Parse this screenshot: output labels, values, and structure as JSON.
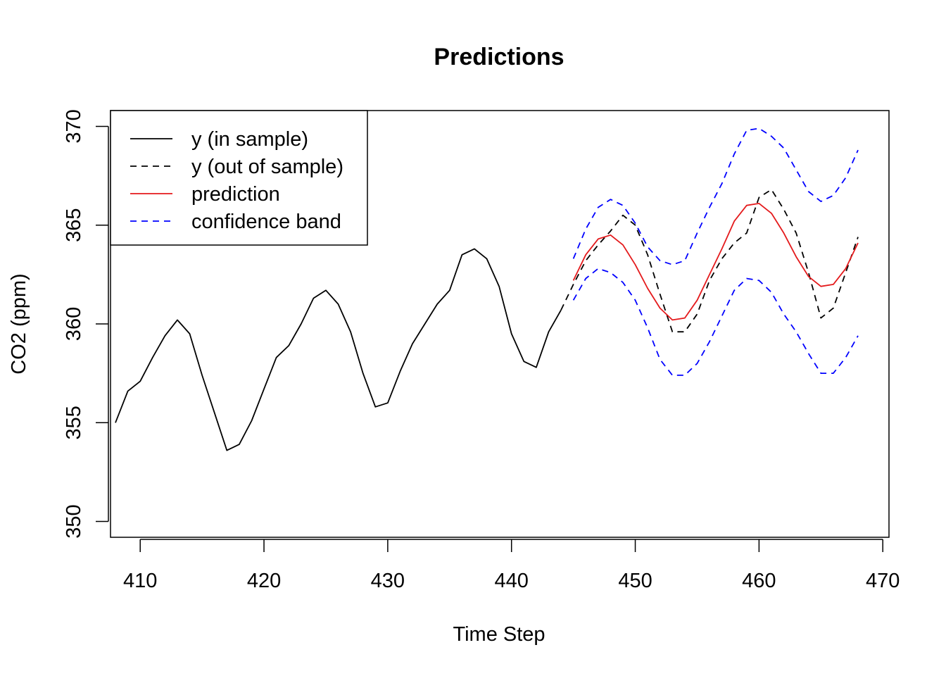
{
  "chart_data": {
    "type": "line",
    "title": "Predictions",
    "xlabel": "Time Step",
    "ylabel": "CO2 (ppm)",
    "xlim": [
      407.6,
      470.5
    ],
    "ylim": [
      349.2,
      370.8
    ],
    "x_ticks": [
      410,
      420,
      430,
      440,
      450,
      460,
      470
    ],
    "y_ticks": [
      350,
      355,
      360,
      365,
      370
    ],
    "x_tick_labels": [
      "410",
      "420",
      "430",
      "440",
      "450",
      "460",
      "470"
    ],
    "y_tick_labels": [
      "350",
      "355",
      "360",
      "365",
      "370"
    ],
    "legend_position": "top-left",
    "series": [
      {
        "name": "y (in sample)",
        "color": "#000000",
        "dash": "solid",
        "x": [
          408,
          409,
          410,
          411,
          412,
          413,
          414,
          415,
          416,
          417,
          418,
          419,
          420,
          421,
          422,
          423,
          424,
          425,
          426,
          427,
          428,
          429,
          430,
          431,
          432,
          433,
          434,
          435,
          436,
          437,
          438,
          439,
          440,
          441,
          442,
          443,
          444
        ],
        "y": [
          355.0,
          356.6,
          357.1,
          358.3,
          359.4,
          360.2,
          359.5,
          357.4,
          355.5,
          353.6,
          353.9,
          355.1,
          356.7,
          358.3,
          358.9,
          360.0,
          361.3,
          361.7,
          361.0,
          359.6,
          357.5,
          355.8,
          356.0,
          357.6,
          359.0,
          360.0,
          361.0,
          361.7,
          363.5,
          363.8,
          363.3,
          361.9,
          359.5,
          358.1,
          357.8,
          359.6,
          360.7
        ]
      },
      {
        "name": "y (out of sample)",
        "color": "#000000",
        "dash": "dashed",
        "x": [
          444,
          445,
          446,
          447,
          448,
          449,
          450,
          451,
          452,
          453,
          454,
          455,
          456,
          457,
          458,
          459,
          460,
          461,
          462,
          463,
          464,
          465,
          466,
          467,
          468
        ],
        "y": [
          360.7,
          362.0,
          363.2,
          364.0,
          364.7,
          365.5,
          365.0,
          363.5,
          361.5,
          359.6,
          359.6,
          360.5,
          362.2,
          363.3,
          364.1,
          364.6,
          366.4,
          366.8,
          365.8,
          364.6,
          362.6,
          360.3,
          360.8,
          362.6,
          364.4
        ]
      },
      {
        "name": "prediction",
        "color": "#e41a1c",
        "dash": "solid",
        "x": [
          445,
          446,
          447,
          448,
          449,
          450,
          451,
          452,
          453,
          454,
          455,
          456,
          457,
          458,
          459,
          460,
          461,
          462,
          463,
          464,
          465,
          466,
          467,
          468
        ],
        "y": [
          362.2,
          363.5,
          364.3,
          364.5,
          364.0,
          363.0,
          361.8,
          360.8,
          360.2,
          360.3,
          361.2,
          362.5,
          363.8,
          365.2,
          366.0,
          366.1,
          365.6,
          364.6,
          363.4,
          362.4,
          361.9,
          362.0,
          362.8,
          364.1
        ]
      },
      {
        "name": "confidence band",
        "color": "#0000ff",
        "dash": "dashed",
        "x": [
          445,
          446,
          447,
          448,
          449,
          450,
          451,
          452,
          453,
          454,
          455,
          456,
          457,
          458,
          459,
          460,
          461,
          462,
          463,
          464,
          465,
          466,
          467,
          468
        ],
        "y": [
          363.3,
          364.8,
          365.9,
          366.3,
          366.0,
          365.1,
          363.9,
          363.2,
          363.0,
          363.2,
          364.6,
          365.9,
          367.1,
          368.6,
          369.8,
          369.9,
          369.5,
          368.9,
          367.8,
          366.7,
          366.2,
          366.5,
          367.4,
          368.8
        ]
      },
      {
        "name": "",
        "color": "#0000ff",
        "dash": "dashed",
        "x": [
          445,
          446,
          447,
          448,
          449,
          450,
          451,
          452,
          453,
          454,
          455,
          456,
          457,
          458,
          459,
          460,
          461,
          462,
          463,
          464,
          465,
          466,
          467,
          468
        ],
        "y": [
          361.2,
          362.3,
          362.8,
          362.6,
          362.1,
          361.2,
          359.8,
          358.2,
          357.4,
          357.4,
          358.0,
          359.1,
          360.4,
          361.7,
          362.3,
          362.2,
          361.6,
          360.5,
          359.6,
          358.5,
          357.5,
          357.5,
          358.3,
          359.4
        ]
      }
    ]
  }
}
